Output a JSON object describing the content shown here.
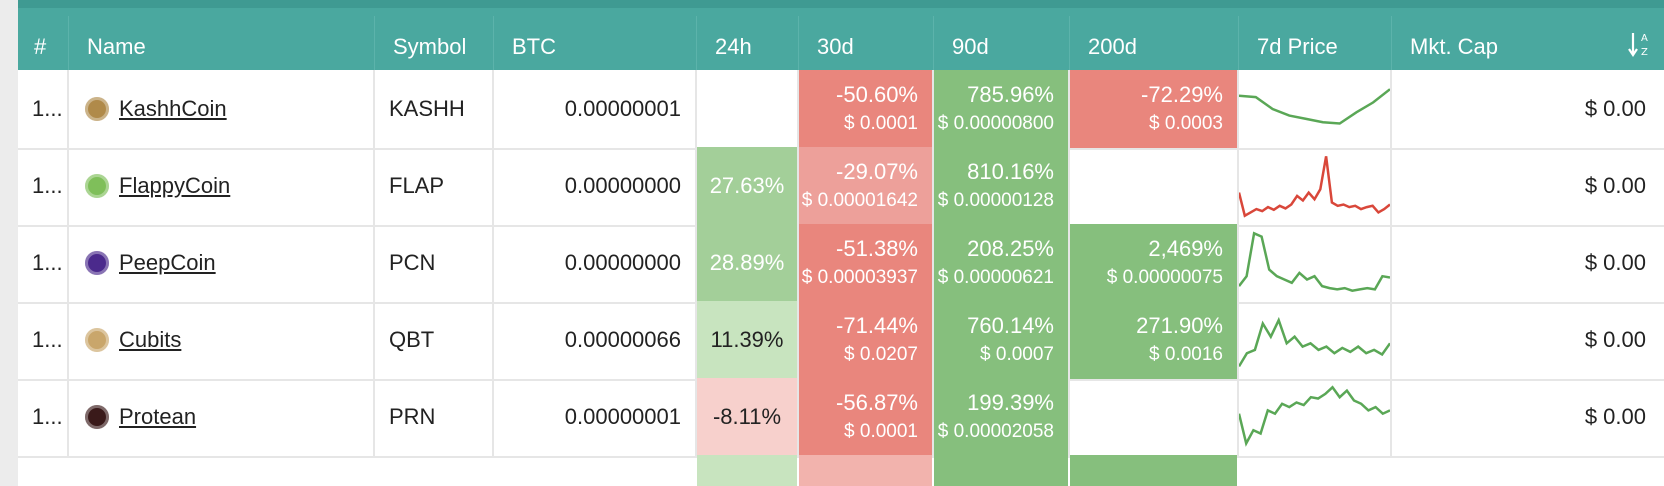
{
  "header": {
    "rank": "#",
    "name": "Name",
    "symbol": "Symbol",
    "btc": "BTC",
    "h24": "24h",
    "d30": "30d",
    "d90": "90d",
    "d200": "200d",
    "price7d": "7d Price",
    "mktcap": "Mkt. Cap",
    "sort_icon": "sort-a-z-icon"
  },
  "colors": {
    "header_bg": "#4aa89f",
    "red_strong": "#e9867d",
    "red_mid": "#eda09a",
    "red_light": "#f7d0cc",
    "green_strong": "#86bf7d",
    "green_mid": "#a3cf99",
    "green_light": "#c8e4bf",
    "spark_green": "#5aa756",
    "spark_red": "#d9473a"
  },
  "rows": [
    {
      "rank": "1...",
      "name": "KashhCoin",
      "icon": "kashhcoin-logo-icon",
      "symbol": "KASHH",
      "btc": "0.00000001",
      "h24": {
        "pct": "",
        "color": "none"
      },
      "d30": {
        "pct": "-50.60%",
        "usd": "$ 0.0001",
        "color": "red_strong"
      },
      "d90": {
        "pct": "785.96%",
        "usd": "$ 0.00000800",
        "color": "green_strong"
      },
      "d200": {
        "pct": "-72.29%",
        "usd": "$ 0.0003",
        "color": "red_strong"
      },
      "spark": {
        "color": "spark_green",
        "values": [
          0.7,
          0.68,
          0.5,
          0.4,
          0.35,
          0.3,
          0.28,
          0.45,
          0.6,
          0.8
        ]
      },
      "mktcap": "$ 0.00"
    },
    {
      "rank": "1...",
      "name": "FlappyCoin",
      "icon": "flappycoin-logo-icon",
      "symbol": "FLAP",
      "btc": "0.00000000",
      "h24": {
        "pct": "27.63%",
        "color": "green_mid"
      },
      "d30": {
        "pct": "-29.07%",
        "usd": "$ 0.00001642",
        "color": "red_mid"
      },
      "d90": {
        "pct": "810.16%",
        "usd": "$ 0.00000128",
        "color": "green_strong"
      },
      "d200": {
        "pct": "",
        "color": "none"
      },
      "spark": {
        "color": "spark_red",
        "values": [
          0.4,
          0.05,
          0.1,
          0.15,
          0.12,
          0.18,
          0.14,
          0.2,
          0.16,
          0.22,
          0.35,
          0.28,
          0.4,
          0.3,
          0.45,
          0.95,
          0.25,
          0.2,
          0.22,
          0.18,
          0.2,
          0.15,
          0.18,
          0.2,
          0.1,
          0.15,
          0.22
        ]
      },
      "mktcap": "$ 0.00"
    },
    {
      "rank": "1...",
      "name": "PeepCoin",
      "icon": "peepcoin-logo-icon",
      "symbol": "PCN",
      "btc": "0.00000000",
      "h24": {
        "pct": "28.89%",
        "color": "green_mid"
      },
      "d30": {
        "pct": "-51.38%",
        "usd": "$ 0.00003937",
        "color": "red_strong"
      },
      "d90": {
        "pct": "208.25%",
        "usd": "$ 0.00000621",
        "color": "green_strong"
      },
      "d200": {
        "pct": "2,469%",
        "usd": "$ 0.00000075",
        "color": "green_strong"
      },
      "spark": {
        "color": "spark_green",
        "values": [
          0.15,
          0.3,
          0.95,
          0.9,
          0.4,
          0.3,
          0.25,
          0.2,
          0.35,
          0.25,
          0.3,
          0.15,
          0.12,
          0.1,
          0.12,
          0.08,
          0.1,
          0.12,
          0.1,
          0.3,
          0.28
        ]
      },
      "mktcap": "$ 0.00"
    },
    {
      "rank": "1...",
      "name": "Cubits",
      "icon": "cubits-logo-icon",
      "symbol": "QBT",
      "btc": "0.00000066",
      "h24": {
        "pct": "11.39%",
        "color": "green_light"
      },
      "d30": {
        "pct": "-71.44%",
        "usd": "$ 0.0207",
        "color": "red_strong"
      },
      "d90": {
        "pct": "760.14%",
        "usd": "$ 0.0007",
        "color": "green_strong"
      },
      "d200": {
        "pct": "271.90%",
        "usd": "$ 0.0016",
        "color": "green_strong"
      },
      "spark": {
        "color": "spark_green",
        "values": [
          0.1,
          0.3,
          0.35,
          0.75,
          0.55,
          0.8,
          0.45,
          0.55,
          0.4,
          0.45,
          0.35,
          0.4,
          0.3,
          0.38,
          0.32,
          0.4,
          0.3,
          0.35,
          0.28,
          0.45
        ]
      },
      "mktcap": "$ 0.00"
    },
    {
      "rank": "1...",
      "name": "Protean",
      "icon": "protean-logo-icon",
      "symbol": "PRN",
      "btc": "0.00000001",
      "h24": {
        "pct": "-8.11%",
        "color": "red_light"
      },
      "d30": {
        "pct": "-56.87%",
        "usd": "$ 0.0001",
        "color": "red_strong"
      },
      "d90": {
        "pct": "199.39%",
        "usd": "$ 0.00002058",
        "color": "green_strong"
      },
      "d200": {
        "pct": "",
        "color": "none"
      },
      "spark": {
        "color": "spark_green",
        "values": [
          0.55,
          0.1,
          0.3,
          0.25,
          0.6,
          0.55,
          0.7,
          0.65,
          0.72,
          0.68,
          0.8,
          0.78,
          0.85,
          0.95,
          0.8,
          0.9,
          0.75,
          0.7,
          0.6,
          0.65,
          0.55,
          0.6
        ]
      },
      "mktcap": "$ 0.00"
    }
  ]
}
